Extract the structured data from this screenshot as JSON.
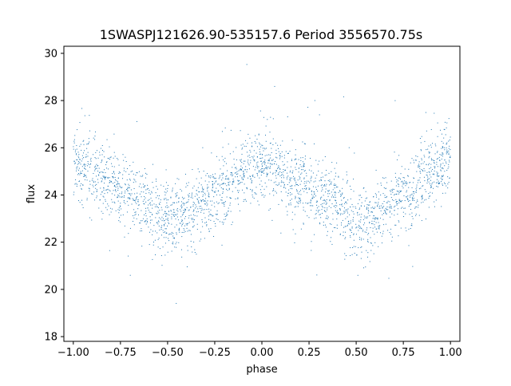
{
  "chart_data": {
    "type": "scatter",
    "title": "1SWASPJ121626.90-535157.6 Period 3556570.75s",
    "xlabel": "phase",
    "ylabel": "flux",
    "xlim": [
      -1.05,
      1.05
    ],
    "ylim": [
      17.8,
      30.3
    ],
    "xticks": [
      -1.0,
      -0.75,
      -0.5,
      -0.25,
      0.0,
      0.25,
      0.5,
      0.75,
      1.0
    ],
    "xtick_labels": [
      "−1.00",
      "−0.75",
      "−0.50",
      "−0.25",
      "0.00",
      "0.25",
      "0.50",
      "0.75",
      "1.00"
    ],
    "yticks": [
      18,
      20,
      22,
      24,
      26,
      28,
      30
    ],
    "ytick_labels": [
      "18",
      "20",
      "22",
      "24",
      "26",
      "28",
      "30"
    ],
    "grid": false,
    "marker_color": "#1f77b4",
    "series": [
      {
        "name": "",
        "phase_x": [
          0.0,
          0.05,
          0.1,
          0.15,
          0.2,
          0.25,
          0.3,
          0.35,
          0.4,
          0.45,
          0.5,
          0.55,
          0.6,
          0.65,
          0.7,
          0.75,
          0.8,
          0.85,
          0.9,
          0.95,
          1.0
        ],
        "mean_flux": [
          25.5,
          25.2,
          24.9,
          24.6,
          24.4,
          24.2,
          24.0,
          23.8,
          23.5,
          23.2,
          23.0,
          22.9,
          23.1,
          23.4,
          23.7,
          24.0,
          24.3,
          24.6,
          24.9,
          25.2,
          25.5
        ],
        "scatter_sigma": 0.75,
        "x_range": [
          -1.0,
          1.0
        ]
      }
    ]
  }
}
